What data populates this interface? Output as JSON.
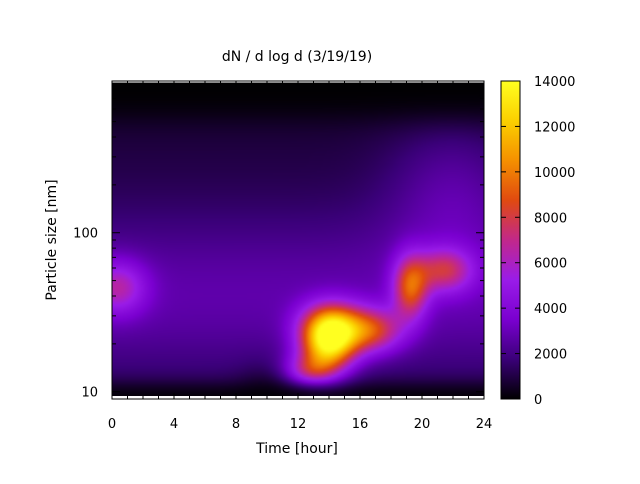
{
  "chart_data": {
    "type": "heatmap",
    "title": "dN / d log d (3/19/19)",
    "xlabel": "Time [hour]",
    "ylabel": "Particle size [nm]",
    "xlim": [
      0,
      24
    ],
    "ylim": [
      9,
      900
    ],
    "yscale": "log",
    "x_ticks": [
      0,
      4,
      8,
      12,
      16,
      20,
      24
    ],
    "x_tick_labels": [
      "0",
      "4",
      "8",
      "12",
      "16",
      "20",
      "24"
    ],
    "y_ticks": [
      10,
      100
    ],
    "y_tick_labels": [
      "10",
      "100"
    ],
    "colorbar": {
      "min": 0,
      "max": 14000,
      "ticks": [
        0,
        2000,
        4000,
        6000,
        8000,
        10000,
        12000,
        14000
      ],
      "tick_labels": [
        "0",
        "2000",
        "4000",
        "6000",
        "8000",
        "10000",
        "12000",
        "14000"
      ],
      "palette": [
        "#000000",
        "#3a0078",
        "#7a00d0",
        "#9a1ce8",
        "#c2288a",
        "#e04a10",
        "#f59000",
        "#fbd000",
        "#ffff20"
      ]
    },
    "grid": false,
    "features": [
      {
        "description": "background concentration",
        "time_range": [
          0,
          24
        ],
        "size_range_nm": [
          10,
          800
        ],
        "value": 2500
      },
      {
        "description": "accumulation mode",
        "time_center": 0,
        "size_center_nm": 45,
        "value": 5800
      },
      {
        "description": "new particle formation burst",
        "time_center": 14,
        "size_center_nm": 20,
        "value": 13000
      },
      {
        "description": "growing mode",
        "time_center": 17,
        "size_center_nm": 24,
        "value": 8500
      },
      {
        "description": "late mode",
        "time_center": 19.5,
        "size_center_nm": 50,
        "value": 9000
      },
      {
        "description": "late mode",
        "time_center": 21.5,
        "size_center_nm": 60,
        "value": 7500
      }
    ]
  }
}
